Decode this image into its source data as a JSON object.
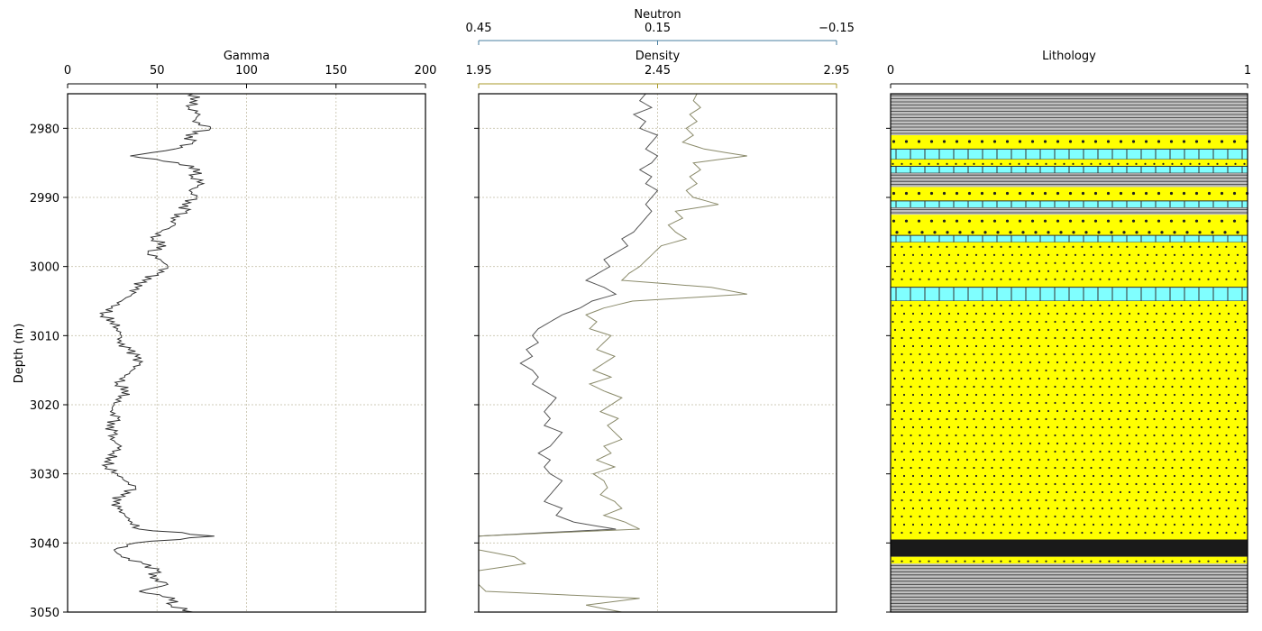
{
  "chart_data": [
    {
      "type": "line",
      "track": "gamma",
      "title": "Gamma",
      "ylabel": "Depth (m)",
      "xlim": [
        0,
        200
      ],
      "ylim": [
        2975,
        3050
      ],
      "y_inverted": true,
      "xticks": [
        "0",
        "50",
        "100",
        "150",
        "200"
      ],
      "yticks": [
        "2980",
        "2990",
        "3000",
        "3010",
        "3020",
        "3030",
        "3040",
        "3050"
      ],
      "grid": true,
      "color": "#333333",
      "series": [
        {
          "name": "Gamma",
          "depth": [
            2975,
            2976,
            2977,
            2978,
            2979,
            2980,
            2981,
            2982,
            2983,
            2984,
            2985,
            2986,
            2987,
            2988,
            2989,
            2990,
            2991,
            2992,
            2993,
            2994,
            2995,
            2996,
            2997,
            2998,
            2999,
            3000,
            3001,
            3002,
            3003,
            3004,
            3005,
            3006,
            3007,
            3008,
            3009,
            3010,
            3011,
            3012,
            3013,
            3014,
            3015,
            3016,
            3017,
            3018,
            3019,
            3020,
            3021,
            3022,
            3023,
            3024,
            3025,
            3026,
            3027,
            3028,
            3029,
            3030,
            3031,
            3032,
            3033,
            3034,
            3035,
            3036,
            3037,
            3038,
            3039,
            3040,
            3041,
            3042,
            3043,
            3044,
            3045,
            3046,
            3047,
            3048,
            3049,
            3050
          ],
          "values": [
            70,
            72,
            68,
            74,
            70,
            80,
            66,
            70,
            60,
            35,
            62,
            74,
            70,
            76,
            68,
            72,
            64,
            66,
            58,
            60,
            52,
            48,
            55,
            45,
            52,
            56,
            50,
            42,
            38,
            36,
            30,
            25,
            20,
            26,
            28,
            30,
            28,
            34,
            38,
            40,
            36,
            32,
            28,
            34,
            30,
            26,
            24,
            28,
            22,
            26,
            24,
            30,
            26,
            24,
            22,
            28,
            32,
            38,
            30,
            26,
            28,
            32,
            36,
            40,
            82,
            38,
            26,
            30,
            42,
            50,
            46,
            56,
            40,
            60,
            58,
            70
          ],
          "extra_peaks": [
            [
              2984.2,
              20
            ],
            [
              3041.3,
              25
            ],
            [
              3038.8,
              82
            ]
          ]
        }
      ]
    },
    {
      "type": "line",
      "track": "neutron-density",
      "title": "Density",
      "title_top": "Neutron",
      "ylim": [
        2975,
        3050
      ],
      "y_inverted": true,
      "grid": true,
      "density_axis": {
        "label": "Density",
        "range": [
          1.95,
          2.95
        ],
        "ticks": [
          "1.95",
          "2.45",
          "2.95"
        ],
        "color": "#a89a2a"
      },
      "neutron_axis": {
        "label": "Neutron",
        "range": [
          0.45,
          -0.15
        ],
        "ticks": [
          "0.45",
          "0.15",
          "−0.15"
        ],
        "color": "#4a7fa0"
      },
      "series": [
        {
          "name": "Neutron",
          "depth": [
            2975,
            2976,
            2977,
            2978,
            2979,
            2980,
            2981,
            2982,
            2983,
            2984,
            2985,
            2986,
            2987,
            2988,
            2989,
            2990,
            2991,
            2992,
            2993,
            2994,
            2995,
            2996,
            2997,
            2998,
            2999,
            3000,
            3001,
            3002,
            3003,
            3004,
            3005,
            3006,
            3007,
            3008,
            3009,
            3010,
            3011,
            3012,
            3013,
            3014,
            3015,
            3016,
            3017,
            3018,
            3019,
            3020,
            3021,
            3022,
            3023,
            3024,
            3025,
            3026,
            3027,
            3028,
            3029,
            3030,
            3031,
            3032,
            3033,
            3034,
            3035,
            3036,
            3037,
            3038,
            3039,
            3040,
            3041,
            3042,
            3043,
            3044,
            3045,
            3046,
            3047,
            3048,
            3049,
            3050
          ],
          "values": [
            0.17,
            0.18,
            0.16,
            0.19,
            0.17,
            0.18,
            0.15,
            0.16,
            0.17,
            0.15,
            0.16,
            0.18,
            0.16,
            0.17,
            0.15,
            0.16,
            0.17,
            0.16,
            0.17,
            0.18,
            0.19,
            0.21,
            0.2,
            0.22,
            0.24,
            0.23,
            0.25,
            0.27,
            0.24,
            0.22,
            0.26,
            0.28,
            0.31,
            0.33,
            0.35,
            0.36,
            0.35,
            0.37,
            0.36,
            0.38,
            0.36,
            0.35,
            0.36,
            0.34,
            0.32,
            0.33,
            0.34,
            0.33,
            0.34,
            0.31,
            0.32,
            0.33,
            0.35,
            0.33,
            0.34,
            0.33,
            0.31,
            0.32,
            0.33,
            0.34,
            0.31,
            0.32,
            0.29,
            0.22,
            0.45,
            0.45,
            0.45,
            0.45,
            0.45,
            0.45,
            0.45,
            0.45,
            0.45,
            0.45,
            0.45,
            0.45
          ]
        },
        {
          "name": "Density",
          "depth": [
            2975,
            2976,
            2977,
            2978,
            2979,
            2980,
            2981,
            2982,
            2983,
            2984,
            2985,
            2986,
            2987,
            2988,
            2989,
            2990,
            2991,
            2992,
            2993,
            2994,
            2995,
            2996,
            2997,
            2998,
            2999,
            3000,
            3001,
            3002,
            3003,
            3004,
            3005,
            3006,
            3007,
            3008,
            3009,
            3010,
            3011,
            3012,
            3013,
            3014,
            3015,
            3016,
            3017,
            3018,
            3019,
            3020,
            3021,
            3022,
            3023,
            3024,
            3025,
            3026,
            3027,
            3028,
            3029,
            3030,
            3031,
            3032,
            3033,
            3034,
            3035,
            3036,
            3037,
            3038,
            3039,
            3040,
            3041,
            3042,
            3043,
            3044,
            3045,
            3046,
            3047,
            3048,
            3049,
            3050
          ],
          "values": [
            2.56,
            2.55,
            2.57,
            2.54,
            2.56,
            2.53,
            2.55,
            2.52,
            2.58,
            2.7,
            2.55,
            2.57,
            2.54,
            2.56,
            2.53,
            2.55,
            2.62,
            2.5,
            2.52,
            2.48,
            2.5,
            2.53,
            2.46,
            2.44,
            2.42,
            2.4,
            2.37,
            2.35,
            2.6,
            2.7,
            2.38,
            2.3,
            2.25,
            2.28,
            2.26,
            2.32,
            2.3,
            2.28,
            2.33,
            2.3,
            2.27,
            2.32,
            2.26,
            2.3,
            2.35,
            2.32,
            2.29,
            2.34,
            2.31,
            2.33,
            2.35,
            2.3,
            2.32,
            2.28,
            2.33,
            2.27,
            2.3,
            2.31,
            2.29,
            2.33,
            2.35,
            2.3,
            2.36,
            2.4,
            1.95,
            1.95,
            1.95,
            2.05,
            2.08,
            1.95,
            1.95,
            1.95,
            1.97,
            2.4,
            2.25,
            2.35
          ]
        }
      ]
    },
    {
      "type": "area",
      "track": "lithology",
      "title": "Lithology",
      "xlim": [
        0,
        1
      ],
      "xticks": [
        "0",
        "1"
      ],
      "ylim": [
        2975,
        3050
      ],
      "y_inverted": true,
      "intervals": [
        {
          "top": 2975,
          "base": 2981,
          "lith": "shale",
          "color": "#c0c0c0"
        },
        {
          "top": 2981,
          "base": 2983,
          "lith": "sandstone-coarse",
          "color": "#ffff00"
        },
        {
          "top": 2983,
          "base": 2984.5,
          "lith": "limestone",
          "color": "#80ffff"
        },
        {
          "top": 2984.5,
          "base": 2985.5,
          "lith": "sandstone-fine",
          "color": "#ffff00"
        },
        {
          "top": 2985.5,
          "base": 2986.5,
          "lith": "limestone",
          "color": "#80ffff"
        },
        {
          "top": 2986.5,
          "base": 2988.5,
          "lith": "shale",
          "color": "#c0c0c0"
        },
        {
          "top": 2988.5,
          "base": 2990.5,
          "lith": "sandstone-coarse",
          "color": "#ffff00"
        },
        {
          "top": 2990.5,
          "base": 2991.5,
          "lith": "limestone",
          "color": "#80ffff"
        },
        {
          "top": 2991.5,
          "base": 2992.5,
          "lith": "shale",
          "color": "#c0c0c0"
        },
        {
          "top": 2992.5,
          "base": 2995.5,
          "lith": "sandstone-coarse",
          "color": "#ffff00"
        },
        {
          "top": 2995.5,
          "base": 2996.5,
          "lith": "limestone",
          "color": "#80ffff"
        },
        {
          "top": 2996.5,
          "base": 3003,
          "lith": "sandstone",
          "color": "#ffff00"
        },
        {
          "top": 3003,
          "base": 3005,
          "lith": "dolomite",
          "color": "#80ffff"
        },
        {
          "top": 3005,
          "base": 3039.5,
          "lith": "sandstone",
          "color": "#ffff00"
        },
        {
          "top": 3039.5,
          "base": 3042,
          "lith": "coal",
          "color": "#1a1a1a"
        },
        {
          "top": 3042,
          "base": 3043,
          "lith": "sandstone-fine",
          "color": "#ffff00"
        },
        {
          "top": 3043,
          "base": 3050,
          "lith": "shale",
          "color": "#c0c0c0"
        }
      ]
    }
  ]
}
